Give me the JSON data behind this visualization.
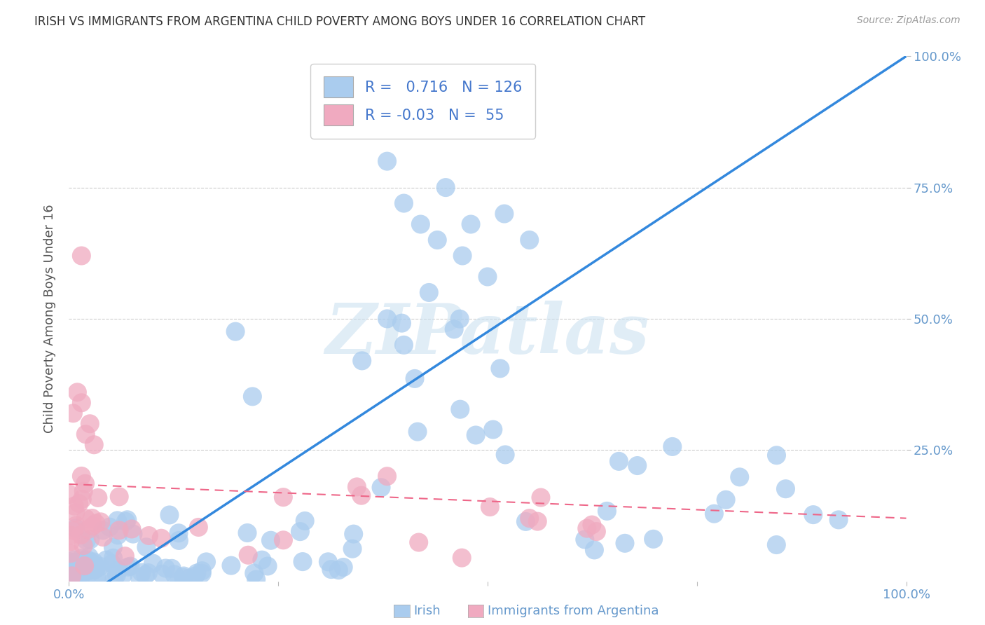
{
  "title": "IRISH VS IMMIGRANTS FROM ARGENTINA CHILD POVERTY AMONG BOYS UNDER 16 CORRELATION CHART",
  "source": "Source: ZipAtlas.com",
  "ylabel": "Child Poverty Among Boys Under 16",
  "irish_R": 0.716,
  "irish_N": 126,
  "arg_R": -0.03,
  "arg_N": 55,
  "irish_color": "#aaccee",
  "arg_color": "#f0aac0",
  "irish_line_color": "#3388dd",
  "arg_line_color": "#ee6688",
  "legend_label_irish": "Irish",
  "legend_label_arg": "Immigrants from Argentina",
  "watermark_text": "ZIPatlas",
  "bg_color": "#ffffff",
  "grid_color": "#cccccc",
  "title_color": "#333333",
  "tick_color": "#6699cc",
  "ylabel_color": "#555555",
  "source_color": "#999999",
  "legend_text_color": "#4477cc"
}
